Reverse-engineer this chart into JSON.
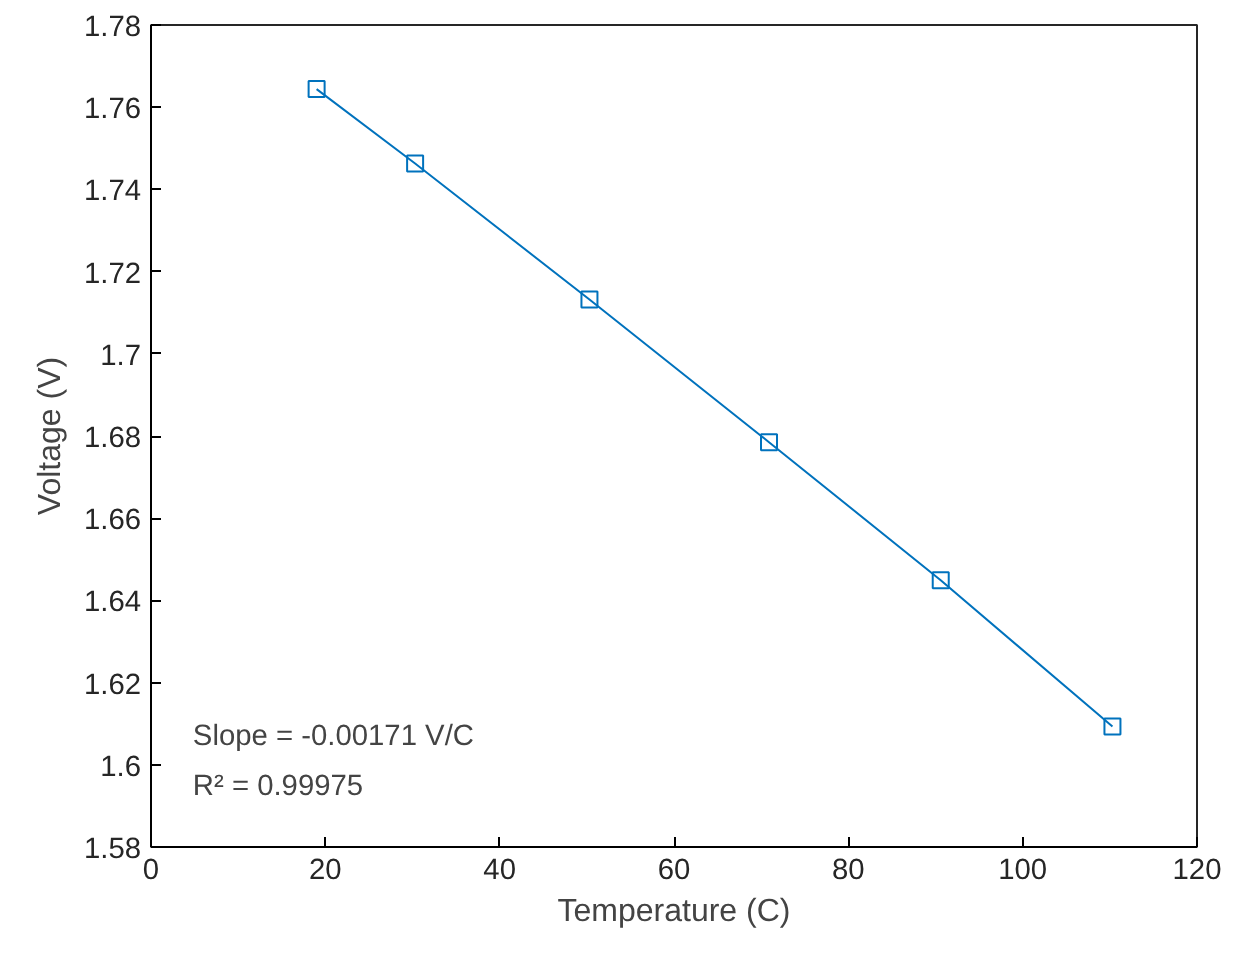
{
  "chart_data": {
    "type": "line",
    "xlabel": "Temperature (C)",
    "ylabel": "Voltage (V)",
    "x": [
      19.0,
      30.3,
      50.3,
      70.9,
      90.6,
      110.3
    ],
    "series": [
      {
        "color": "#0072bd",
        "values": [
          1.7644,
          1.7463,
          1.7132,
          1.6785,
          1.6449,
          1.6093
        ]
      }
    ],
    "marker": "square",
    "line_style": "solid",
    "grid": false,
    "xlim": [
      0,
      120
    ],
    "ylim": [
      1.58,
      1.78
    ],
    "xticks": [
      0,
      20,
      40,
      60,
      80,
      100,
      120
    ],
    "yticks": [
      1.58,
      1.6,
      1.62,
      1.64,
      1.66,
      1.68,
      1.7,
      1.72,
      1.74,
      1.76,
      1.78
    ],
    "annotations": [
      "Slope = -0.00171 V/C",
      "R² = 0.99975"
    ]
  }
}
